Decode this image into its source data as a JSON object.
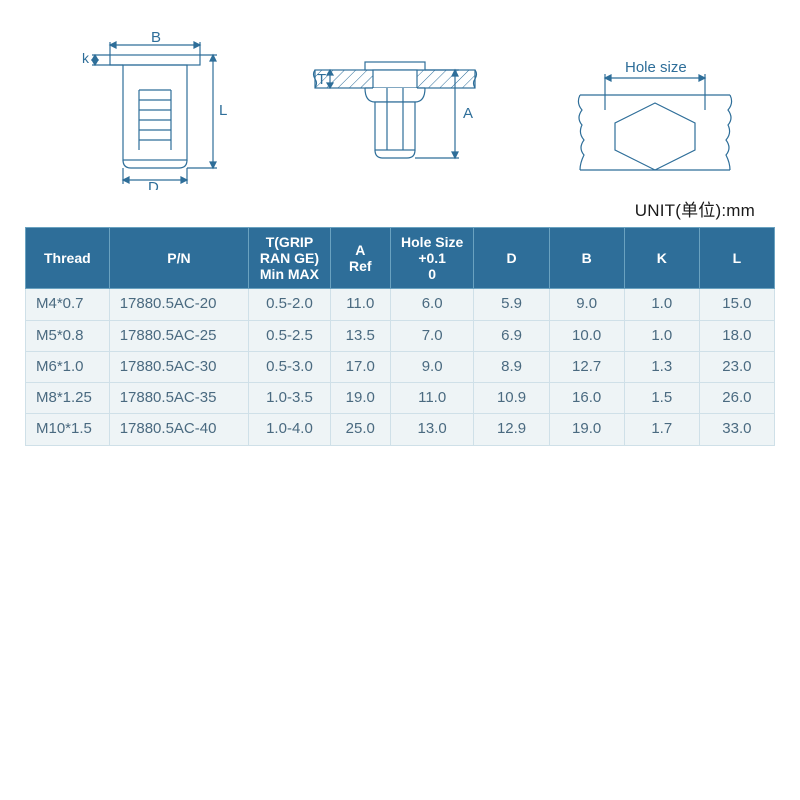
{
  "unit_label": "UNIT(单位):mm",
  "diagram_labels": {
    "B": "B",
    "k": "k",
    "L": "L",
    "D": "D",
    "T": "T",
    "A": "A",
    "hole_size": "Hole size"
  },
  "style": {
    "stroke": "#2e6e99",
    "thin_stroke_width": 1,
    "med_stroke_width": 1.6,
    "hatch_spacing": 7,
    "header_bg": "#2e6e99",
    "header_fg": "#ffffff",
    "cell_bg": "#eef4f6",
    "cell_fg": "#4a6a80",
    "cell_border": "#cfe0e8",
    "unit_color": "#1a1a1a",
    "font_size_header": 14,
    "font_size_cell": 15,
    "font_size_unit": 17
  },
  "table": {
    "columns": [
      {
        "key": "thread",
        "label": "Thread",
        "align": "left"
      },
      {
        "key": "pn",
        "label": "P/N",
        "align": "left"
      },
      {
        "key": "t",
        "label": "T(GRIP\nRAN GE)\nMin MAX",
        "align": "center"
      },
      {
        "key": "a",
        "label": "A\nRef",
        "align": "center"
      },
      {
        "key": "hole",
        "label": "Hole Size\n+0.1\n0",
        "align": "center"
      },
      {
        "key": "d",
        "label": "D",
        "align": "center"
      },
      {
        "key": "b",
        "label": "B",
        "align": "center"
      },
      {
        "key": "k",
        "label": "K",
        "align": "center"
      },
      {
        "key": "l",
        "label": "L",
        "align": "center"
      }
    ],
    "rows": [
      {
        "thread": "M4*0.7",
        "pn": "17880.5AC-20",
        "t": "0.5-2.0",
        "a": "11.0",
        "hole": "6.0",
        "d": "5.9",
        "b": "9.0",
        "k": "1.0",
        "l": "15.0"
      },
      {
        "thread": "M5*0.8",
        "pn": "17880.5AC-25",
        "t": "0.5-2.5",
        "a": "13.5",
        "hole": "7.0",
        "d": "6.9",
        "b": "10.0",
        "k": "1.0",
        "l": "18.0"
      },
      {
        "thread": "M6*1.0",
        "pn": "17880.5AC-30",
        "t": "0.5-3.0",
        "a": "17.0",
        "hole": "9.0",
        "d": "8.9",
        "b": "12.7",
        "k": "1.3",
        "l": "23.0"
      },
      {
        "thread": "M8*1.25",
        "pn": "17880.5AC-35",
        "t": "1.0-3.5",
        "a": "19.0",
        "hole": "11.0",
        "d": "10.9",
        "b": "16.0",
        "k": "1.5",
        "l": "26.0"
      },
      {
        "thread": "M10*1.5",
        "pn": "17880.5AC-40",
        "t": "1.0-4.0",
        "a": "25.0",
        "hole": "13.0",
        "d": "12.9",
        "b": "19.0",
        "k": "1.7",
        "l": "33.0"
      }
    ]
  }
}
